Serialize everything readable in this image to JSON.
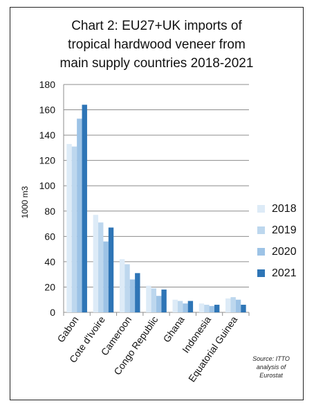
{
  "chart_data": {
    "type": "bar",
    "title_lines": [
      "Chart 2: EU27+UK imports of",
      "tropical hardwood veneer from",
      "main supply countries 2018-2021"
    ],
    "ylabel": "1000 m3",
    "xlabel": "",
    "ylim": [
      0,
      180
    ],
    "yticks": [
      0,
      20,
      40,
      60,
      80,
      100,
      120,
      140,
      160,
      180
    ],
    "grid": true,
    "legend_position": "right",
    "categories": [
      "Gabon",
      "Cote d'Ivoire",
      "Cameroon",
      "Congo Republic",
      "Ghana",
      "Indonesia",
      "Equatorial Guinea"
    ],
    "series": [
      {
        "name": "2018",
        "color": "#DDEBF7",
        "values": [
          133,
          77,
          42,
          21,
          10,
          7,
          11
        ]
      },
      {
        "name": "2019",
        "color": "#BDD7EE",
        "values": [
          131,
          71,
          38,
          19,
          9,
          6,
          12
        ]
      },
      {
        "name": "2020",
        "color": "#9DC3E6",
        "values": [
          153,
          56,
          26,
          13,
          7,
          5,
          10
        ]
      },
      {
        "name": "2021",
        "color": "#2E75B6",
        "values": [
          164,
          67,
          31,
          18,
          9,
          6,
          6
        ]
      }
    ],
    "source_lines": [
      "Source: ITTO",
      "analysis of",
      "Eurostat"
    ]
  }
}
